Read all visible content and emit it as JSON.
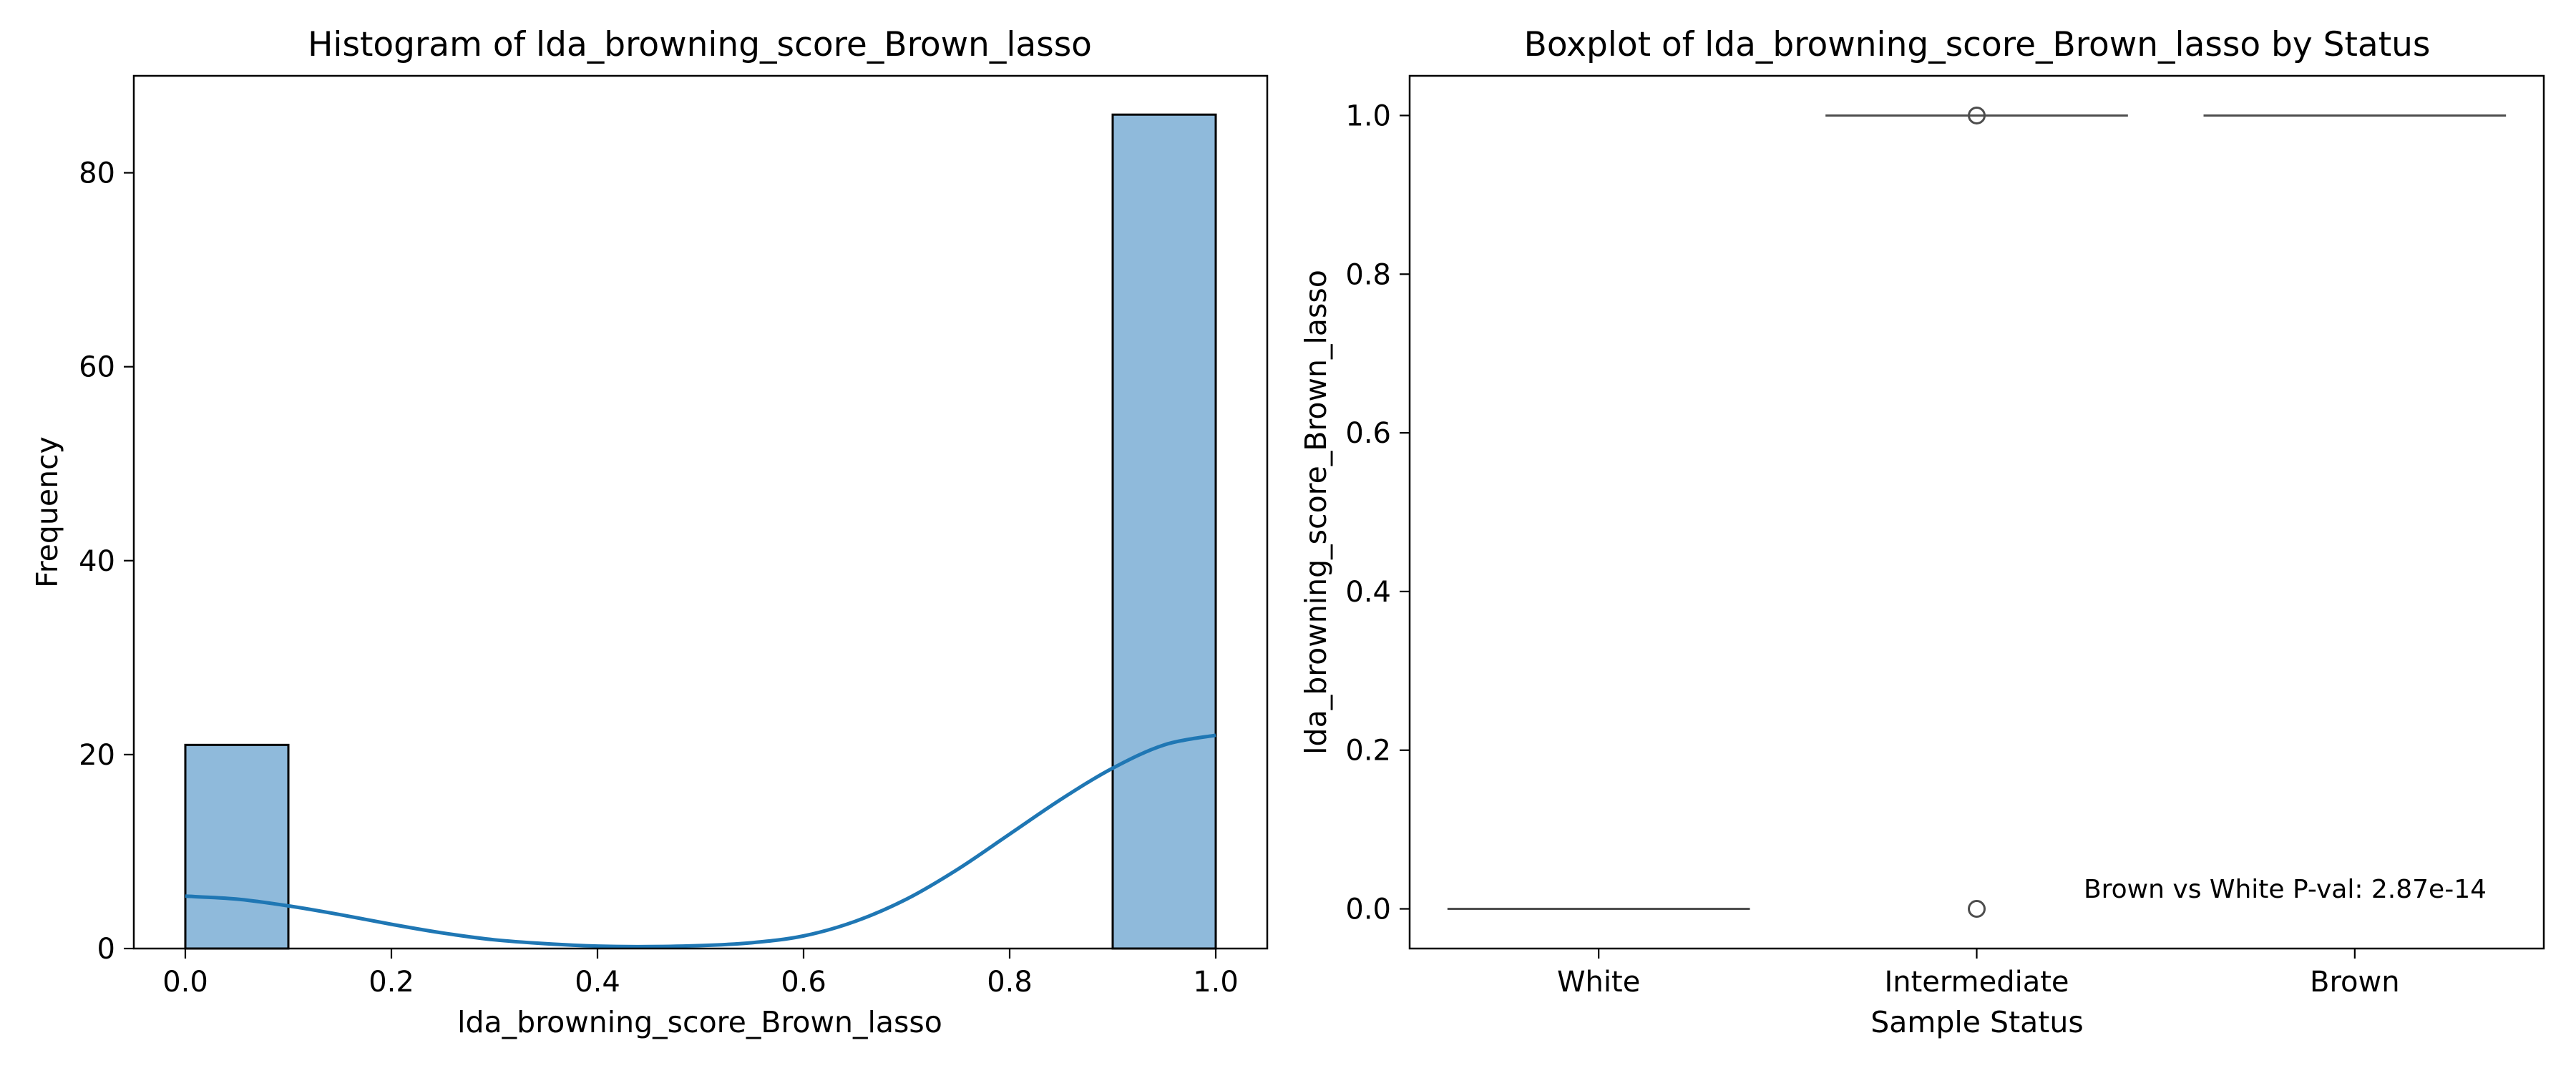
{
  "chart_data": [
    {
      "type": "bar",
      "title": "Histogram of lda_browning_score_Brown_lasso",
      "xlabel": "lda_browning_score_Brown_lasso",
      "ylabel": "Frequency",
      "xlim": [
        -0.05,
        1.05
      ],
      "ylim": [
        0,
        90
      ],
      "xticks": [
        0.0,
        0.2,
        0.4,
        0.6,
        0.8,
        1.0
      ],
      "xtick_labels": [
        "0.0",
        "0.2",
        "0.4",
        "0.6",
        "0.8",
        "1.0"
      ],
      "yticks": [
        0,
        20,
        40,
        60,
        80
      ],
      "ytick_labels": [
        "0",
        "20",
        "40",
        "60",
        "80"
      ],
      "bins": [
        {
          "x0": 0.0,
          "x1": 0.1,
          "count": 21
        },
        {
          "x0": 0.9,
          "x1": 1.0,
          "count": 86
        }
      ],
      "bar_color": "#8fbadb",
      "kde_color": "#1f77b4",
      "kde": {
        "x": [
          0.0,
          0.05,
          0.1,
          0.15,
          0.2,
          0.25,
          0.3,
          0.35,
          0.4,
          0.45,
          0.5,
          0.55,
          0.6,
          0.65,
          0.7,
          0.75,
          0.8,
          0.85,
          0.9,
          0.95,
          1.0
        ],
        "y": [
          5.4,
          5.1,
          4.4,
          3.5,
          2.5,
          1.6,
          0.9,
          0.5,
          0.25,
          0.2,
          0.3,
          0.6,
          1.3,
          2.8,
          5.1,
          8.2,
          11.8,
          15.4,
          18.6,
          21.0,
          22.0
        ]
      },
      "grid": false
    },
    {
      "type": "box",
      "title": "Boxplot of lda_browning_score_Brown_lasso by Status",
      "xlabel": "Sample Status",
      "ylabel": "lda_browning_score_Brown_lasso",
      "categories": [
        "White",
        "Intermediate",
        "Brown"
      ],
      "ylim": [
        -0.05,
        1.05
      ],
      "yticks": [
        0.0,
        0.2,
        0.4,
        0.6,
        0.8,
        1.0
      ],
      "ytick_labels": [
        "0.0",
        "0.2",
        "0.4",
        "0.6",
        "0.8",
        "1.0"
      ],
      "boxes": [
        {
          "category": "White",
          "q1": 0.0,
          "median": 0.0,
          "q3": 0.0,
          "whisker_low": 0.0,
          "whisker_high": 0.0,
          "outliers": []
        },
        {
          "category": "Intermediate",
          "q1": 1.0,
          "median": 1.0,
          "q3": 1.0,
          "whisker_low": 1.0,
          "whisker_high": 1.0,
          "outliers": [
            1.0,
            0.0
          ]
        },
        {
          "category": "Brown",
          "q1": 1.0,
          "median": 1.0,
          "q3": 1.0,
          "whisker_low": 1.0,
          "whisker_high": 1.0,
          "outliers": []
        }
      ],
      "line_color": "#4d4d4d",
      "annotation": "Brown vs White P-val: 2.87e-14",
      "annotation_placement": "bottom-right",
      "grid": false
    }
  ]
}
